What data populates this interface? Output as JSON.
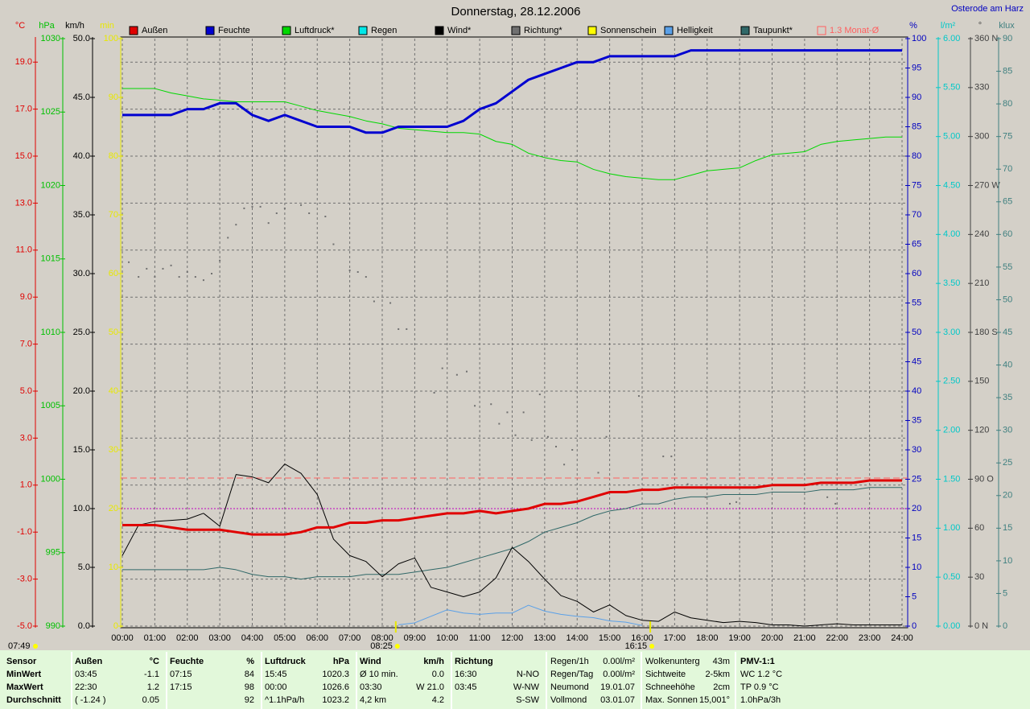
{
  "chart_data": {
    "type": "line",
    "title": "Donnerstag, 28.12.2006",
    "location": "Osterode am Harz",
    "xlim": [
      0,
      24
    ],
    "xticks": [
      {
        "value": 0,
        "label": "00:00"
      },
      {
        "value": 1,
        "label": "01:00"
      },
      {
        "value": 2,
        "label": "02:00"
      },
      {
        "value": 3,
        "label": "03:00"
      },
      {
        "value": 4,
        "label": "04:00"
      },
      {
        "value": 5,
        "label": "05:00"
      },
      {
        "value": 6,
        "label": "06:00"
      },
      {
        "value": 7,
        "label": "07:00"
      },
      {
        "value": 8,
        "label": "08:00"
      },
      {
        "value": 9,
        "label": "09:00"
      },
      {
        "value": 10,
        "label": "10:00"
      },
      {
        "value": 11,
        "label": "11:00"
      },
      {
        "value": 12,
        "label": "12:00"
      },
      {
        "value": 13,
        "label": "13:00"
      },
      {
        "value": 14,
        "label": "14:00"
      },
      {
        "value": 15,
        "label": "15:00"
      },
      {
        "value": 16,
        "label": "16:00"
      },
      {
        "value": 17,
        "label": "17:00"
      },
      {
        "value": 18,
        "label": "18:00"
      },
      {
        "value": 19,
        "label": "19:00"
      },
      {
        "value": 20,
        "label": "20:00"
      },
      {
        "value": 21,
        "label": "21:00"
      },
      {
        "value": 22,
        "label": "22:00"
      },
      {
        "value": 23,
        "label": "23:00"
      },
      {
        "value": 24,
        "label": "24:00"
      }
    ],
    "grid": true,
    "grid_axis": "temp",
    "axes": [
      {
        "id": "temp",
        "label": "°C",
        "color": "#e00000",
        "lim": [
          -5,
          20
        ],
        "ticks": [
          {
            "value": -5,
            "label": "-5.0"
          },
          {
            "value": -3,
            "label": "-3.0"
          },
          {
            "value": -1,
            "label": "-1.0"
          },
          {
            "value": 1,
            "label": "1.0"
          },
          {
            "value": 3,
            "label": "3.0"
          },
          {
            "value": 5,
            "label": "5.0"
          },
          {
            "value": 7,
            "label": "7.0"
          },
          {
            "value": 9,
            "label": "9.0"
          },
          {
            "value": 11,
            "label": "11.0"
          },
          {
            "value": 13,
            "label": "13.0"
          },
          {
            "value": 15,
            "label": "15.0"
          },
          {
            "value": 17,
            "label": "17.0"
          },
          {
            "value": 19,
            "label": "19.0"
          }
        ]
      },
      {
        "id": "pressure",
        "label": "hPa",
        "color": "#00c000",
        "lim": [
          990,
          1030
        ],
        "ticks": [
          990,
          995,
          1000,
          1005,
          1010,
          1015,
          1020,
          1025,
          1030
        ]
      },
      {
        "id": "wind",
        "label": "km/h",
        "color": "#000000",
        "lim": [
          0,
          50
        ],
        "ticks": [
          {
            "value": 0,
            "label": "0.0"
          },
          {
            "value": 5,
            "label": "5.0"
          },
          {
            "value": 10,
            "label": "10.0"
          },
          {
            "value": 15,
            "label": "15.0"
          },
          {
            "value": 20,
            "label": "20.0"
          },
          {
            "value": 25,
            "label": "25.0"
          },
          {
            "value": 30,
            "label": "30.0"
          },
          {
            "value": 35,
            "label": "35.0"
          },
          {
            "value": 40,
            "label": "40.0"
          },
          {
            "value": 45,
            "label": "45.0"
          },
          {
            "value": 50,
            "label": "50.0"
          }
        ]
      },
      {
        "id": "sun",
        "label": "min",
        "color": "#e8e800",
        "lim": [
          0,
          100
        ],
        "ticks": [
          0,
          10,
          20,
          30,
          40,
          50,
          60,
          70,
          80,
          90,
          100
        ]
      },
      {
        "id": "humidity",
        "label": "%",
        "color": "#0000c0",
        "lim": [
          0,
          100
        ],
        "ticks": [
          0,
          5,
          10,
          15,
          20,
          25,
          30,
          35,
          40,
          45,
          50,
          55,
          60,
          65,
          70,
          75,
          80,
          85,
          90,
          95,
          100
        ]
      },
      {
        "id": "rain",
        "label": "l/m²",
        "color": "#00c8c8",
        "lim": [
          0,
          6
        ],
        "ticks": [
          {
            "value": 0,
            "label": "0.00"
          },
          {
            "value": 0.5,
            "label": "0.50"
          },
          {
            "value": 1,
            "label": "1.00"
          },
          {
            "value": 1.5,
            "label": "1.50"
          },
          {
            "value": 2,
            "label": "2.00"
          },
          {
            "value": 2.5,
            "label": "2.50"
          },
          {
            "value": 3,
            "label": "3.00"
          },
          {
            "value": 3.5,
            "label": "3.50"
          },
          {
            "value": 4,
            "label": "4.00"
          },
          {
            "value": 4.5,
            "label": "4.50"
          },
          {
            "value": 5,
            "label": "5.00"
          },
          {
            "value": 5.5,
            "label": "5.50"
          },
          {
            "value": 6,
            "label": "6.00"
          }
        ]
      },
      {
        "id": "direction",
        "label": "°",
        "color": "#404040",
        "lim": [
          0,
          360
        ],
        "ticks": [
          {
            "value": 0,
            "label": "0 N"
          },
          30,
          60,
          {
            "value": 90,
            "label": "90 O"
          },
          120,
          150,
          {
            "value": 180,
            "label": "180 S"
          },
          210,
          240,
          {
            "value": 270,
            "label": "270 W"
          },
          300,
          330,
          {
            "value": 360,
            "label": "360 N"
          }
        ]
      },
      {
        "id": "light",
        "label": "klux",
        "color": "#408080",
        "lim": [
          0,
          90
        ],
        "ticks": [
          0,
          5,
          10,
          15,
          20,
          25,
          30,
          35,
          40,
          45,
          50,
          55,
          60,
          65,
          70,
          75,
          80,
          85,
          90
        ]
      }
    ],
    "x": [
      0,
      0.5,
      1,
      1.5,
      2,
      2.5,
      3,
      3.5,
      4,
      4.5,
      5,
      5.5,
      6,
      6.5,
      7,
      7.5,
      8,
      8.5,
      9,
      9.5,
      10,
      10.5,
      11,
      11.5,
      12,
      12.5,
      13,
      13.5,
      14,
      14.5,
      15,
      15.5,
      16,
      16.5,
      17,
      17.5,
      18,
      18.5,
      19,
      19.5,
      20,
      20.5,
      21,
      21.5,
      22,
      22.5,
      23,
      23.5,
      24
    ],
    "series": [
      {
        "name": "Außen",
        "color": "#e00000",
        "axis": "temp",
        "line_width": 3,
        "values": [
          -0.7,
          -0.7,
          -0.7,
          -0.8,
          -0.9,
          -0.9,
          -0.9,
          -1.0,
          -1.1,
          -1.1,
          -1.1,
          -1.0,
          -0.8,
          -0.8,
          -0.6,
          -0.6,
          -0.5,
          -0.5,
          -0.4,
          -0.3,
          -0.2,
          -0.2,
          -0.1,
          -0.2,
          -0.1,
          0.0,
          0.2,
          0.2,
          0.3,
          0.5,
          0.7,
          0.7,
          0.8,
          0.8,
          0.9,
          0.9,
          0.9,
          0.9,
          0.9,
          0.9,
          1.0,
          1.0,
          1.0,
          1.1,
          1.1,
          1.1,
          1.2,
          1.2,
          1.2
        ]
      },
      {
        "name": "Feuchte",
        "color": "#0000d0",
        "axis": "humidity",
        "line_width": 3,
        "values": [
          87,
          87,
          87,
          87,
          88,
          88,
          89,
          89,
          87,
          86,
          87,
          86,
          85,
          85,
          85,
          84,
          84,
          85,
          85,
          85,
          85,
          86,
          88,
          89,
          91,
          93,
          94,
          95,
          96,
          96,
          97,
          97,
          97,
          97,
          97,
          98,
          98,
          98,
          98,
          98,
          98,
          98,
          98,
          98,
          98,
          98,
          98,
          98,
          98
        ]
      },
      {
        "name": "Luftdruck*",
        "color": "#00d800",
        "axis": "pressure",
        "values": [
          1026.6,
          1026.6,
          1026.6,
          1026.3,
          1026.1,
          1025.9,
          1025.8,
          1025.7,
          1025.7,
          1025.7,
          1025.7,
          1025.4,
          1025.1,
          1024.9,
          1024.7,
          1024.4,
          1024.2,
          1023.9,
          1023.8,
          1023.7,
          1023.6,
          1023.6,
          1023.5,
          1023.0,
          1022.8,
          1022.2,
          1021.9,
          1021.7,
          1021.6,
          1021.1,
          1020.8,
          1020.6,
          1020.5,
          1020.4,
          1020.4,
          1020.7,
          1021.0,
          1021.1,
          1021.2,
          1021.7,
          1022.1,
          1022.2,
          1022.3,
          1022.8,
          1023.0,
          1023.1,
          1023.2,
          1023.3,
          1023.3
        ]
      },
      {
        "name": "Regen",
        "color": "#00e8e8",
        "axis": "rain"
      },
      {
        "name": "Wind*",
        "color": "#000000",
        "axis": "wind",
        "values": [
          6.0,
          8.6,
          8.9,
          9.0,
          9.1,
          9.6,
          8.5,
          12.9,
          12.7,
          12.2,
          13.8,
          13.0,
          11.2,
          7.4,
          6.0,
          5.5,
          4.2,
          5.3,
          5.8,
          3.3,
          2.9,
          2.5,
          2.9,
          4.1,
          6.7,
          5.5,
          4.0,
          2.6,
          2.1,
          1.2,
          1.8,
          0.9,
          0.5,
          0.4,
          1.2,
          0.7,
          0.5,
          0.3,
          0.4,
          0.3,
          0.1,
          0.1,
          0.0,
          0.1,
          0.2,
          0.1,
          0.1,
          0.1,
          0.1
        ]
      },
      {
        "name": "Richtung*",
        "color": "#707070",
        "axis": "direction",
        "type": "scatter",
        "x": [
          0.2,
          0.5,
          0.75,
          1.0,
          1.25,
          1.5,
          1.75,
          2.0,
          2.25,
          2.5,
          2.75,
          3.0,
          3.25,
          3.5,
          3.75,
          4.0,
          4.25,
          4.5,
          4.75,
          5.0,
          5.5,
          5.75,
          6.25,
          6.5,
          7.0,
          7.25,
          7.5,
          7.75,
          8.25,
          8.5,
          8.75,
          9.6,
          9.85,
          10.3,
          10.6,
          10.85,
          11.35,
          11.6,
          11.85,
          12.1,
          12.35,
          12.6,
          12.85,
          13.1,
          13.35,
          13.6,
          13.85,
          14.65,
          14.9,
          15.9,
          16.65,
          16.9,
          17.4,
          17.95,
          18.7,
          18.9,
          21.7,
          21.95
        ],
        "values": [
          223,
          214,
          219,
          214,
          219,
          221,
          214,
          217,
          214,
          212,
          216,
          224,
          238,
          246,
          256,
          257,
          257,
          247,
          253,
          256,
          258,
          253,
          251,
          234,
          218,
          217,
          214,
          199,
          198,
          182,
          182,
          143,
          158,
          154,
          156,
          135,
          136,
          124,
          131,
          117,
          131,
          114,
          142,
          116,
          110,
          99,
          108,
          94,
          116,
          141,
          104,
          104,
          87,
          79,
          75,
          76,
          79,
          75
        ]
      },
      {
        "name": "Sonnenschein",
        "color": "#ffff00",
        "axis": "sun"
      },
      {
        "name": "Helligkeit",
        "color": "#5aa0e8",
        "axis": "light",
        "values": [
          null,
          null,
          null,
          null,
          null,
          null,
          null,
          null,
          null,
          null,
          null,
          null,
          null,
          null,
          null,
          null,
          null,
          0.2,
          0.5,
          1.5,
          2.5,
          2.0,
          1.8,
          2.0,
          2.0,
          3.2,
          2.3,
          1.8,
          1.5,
          1.3,
          0.8,
          0.6,
          0.1,
          null,
          null,
          null,
          null,
          null,
          null,
          null,
          null,
          null,
          null,
          null,
          null,
          null,
          null,
          null,
          null
        ]
      },
      {
        "name": "Taupunkt*",
        "color": "#306868",
        "axis": "temp",
        "values": [
          -2.6,
          -2.6,
          -2.6,
          -2.6,
          -2.6,
          -2.6,
          -2.5,
          -2.6,
          -2.8,
          -2.9,
          -2.9,
          -3.0,
          -2.9,
          -2.9,
          -2.9,
          -2.8,
          -2.8,
          -2.8,
          -2.7,
          -2.6,
          -2.5,
          -2.3,
          -2.1,
          -1.9,
          -1.7,
          -1.4,
          -1.0,
          -0.8,
          -0.6,
          -0.3,
          -0.1,
          0.0,
          0.2,
          0.2,
          0.4,
          0.5,
          0.5,
          0.6,
          0.6,
          0.6,
          0.7,
          0.7,
          0.7,
          0.8,
          0.8,
          0.8,
          0.9,
          0.9,
          0.9
        ]
      }
    ],
    "reference_lines": [
      {
        "name": "1.3 Monat-Ø",
        "value": 1.3,
        "axis": "temp",
        "color": "#ff6060",
        "style": "dashed"
      },
      {
        "value": 20,
        "axis": "humidity",
        "color": "#c000c0",
        "style": "dotted"
      }
    ],
    "sunrise_label": "07:49",
    "sun_markers": [
      {
        "value": 8.4167,
        "label": "08:25"
      },
      {
        "value": 16.25,
        "label": "16:15"
      }
    ]
  },
  "summary_table": {
    "row_labels": [
      "Sensor",
      "MinWert",
      "MaxWert",
      "Durchschnitt"
    ],
    "blocks": [
      {
        "title": "Außen",
        "unit": "°C",
        "rows": [
          [
            "03:45",
            "-1.1"
          ],
          [
            "22:30",
            "1.2"
          ],
          [
            "( -1.24 )",
            "0.05"
          ]
        ]
      },
      {
        "title": "Feuchte",
        "unit": "%",
        "rows": [
          [
            "07:15",
            "84"
          ],
          [
            "17:15",
            "98"
          ],
          [
            null,
            "92"
          ]
        ]
      },
      {
        "title": "Luftdruck",
        "unit": "hPa",
        "rows": [
          [
            "15:45",
            "1020.3"
          ],
          [
            "00:00",
            "1026.6"
          ],
          [
            "^1.1hPa/h",
            "1023.2"
          ]
        ]
      },
      {
        "title": "Wind",
        "unit": "km/h",
        "rows": [
          [
            "Ø 10 min.",
            "0.0"
          ],
          [
            "03:30",
            "W 21.0"
          ],
          [
            "4,2 km",
            "4.2"
          ]
        ]
      },
      {
        "title": "Richtung",
        "rows": [
          [
            "16:30",
            "N-NO"
          ],
          [
            "03:45",
            "W-NW"
          ],
          [
            null,
            "S-SW"
          ]
        ]
      }
    ],
    "info": [
      [
        [
          "Regen/1h",
          "0.00l/m²"
        ],
        [
          "Regen/Tag",
          "0.00l/m²"
        ],
        [
          "Neumond",
          "19.01.07"
        ],
        [
          "Vollmond",
          "03.01.07"
        ]
      ],
      [
        [
          "Wolkenunterg",
          "43m"
        ],
        [
          "Sichtweite",
          "2-5km"
        ],
        [
          "Schneehöhe",
          "2cm"
        ],
        [
          "Max. Sonnen",
          "15,001°"
        ]
      ]
    ],
    "pmv": [
      "PMV-1:1",
      "WC 1.2 °C",
      "TP 0.9 °C",
      "1.0hPa/3h"
    ]
  }
}
